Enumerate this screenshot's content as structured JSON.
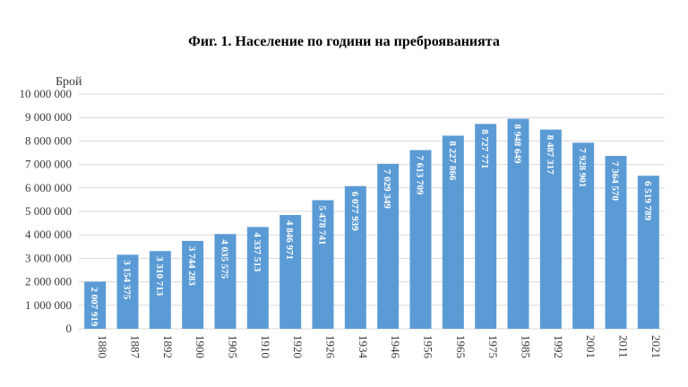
{
  "chart_data": {
    "type": "bar",
    "title": "Фиг. 1. Население по години на преброяванията",
    "ylabel": "Брой",
    "xlabel": "",
    "ylim": [
      0,
      10000000
    ],
    "yticks": [
      0,
      1000000,
      2000000,
      3000000,
      4000000,
      5000000,
      6000000,
      7000000,
      8000000,
      9000000,
      10000000
    ],
    "ytick_labels": [
      "0",
      "1 000 000",
      "2 000 000",
      "3 000 000",
      "4 000 000",
      "5 000 000",
      "6 000 000",
      "7 000 000",
      "8 000 000",
      "9 000 000",
      "10 000 000"
    ],
    "grid": true,
    "bar_color": "#5b9bd5",
    "grid_color": "#d9d9d9",
    "categories": [
      "1880",
      "1887",
      "1892",
      "1900",
      "1905",
      "1910",
      "1920",
      "1926",
      "1934",
      "1946",
      "1956",
      "1965",
      "1975",
      "1985",
      "1992",
      "2001",
      "2011",
      "2021"
    ],
    "values": [
      2007919,
      3154375,
      3310713,
      3744283,
      4035575,
      4337513,
      4846971,
      5478741,
      6077939,
      7029349,
      7613709,
      8227866,
      8727771,
      8948649,
      8487317,
      7928901,
      7364570,
      6519789
    ],
    "data_labels": [
      "2 007 919",
      "3 154 375",
      "3 310 713",
      "3 744 283",
      "4 035 575",
      "4 337 513",
      "4 846 971",
      "5 478 741",
      "6 077 939",
      "7 029 349",
      "7 613 709",
      "8 227 866",
      "8 727 771",
      "8 948 649",
      "8 487 317",
      "7 928 901",
      "7 364 570",
      "6 519 789"
    ]
  }
}
